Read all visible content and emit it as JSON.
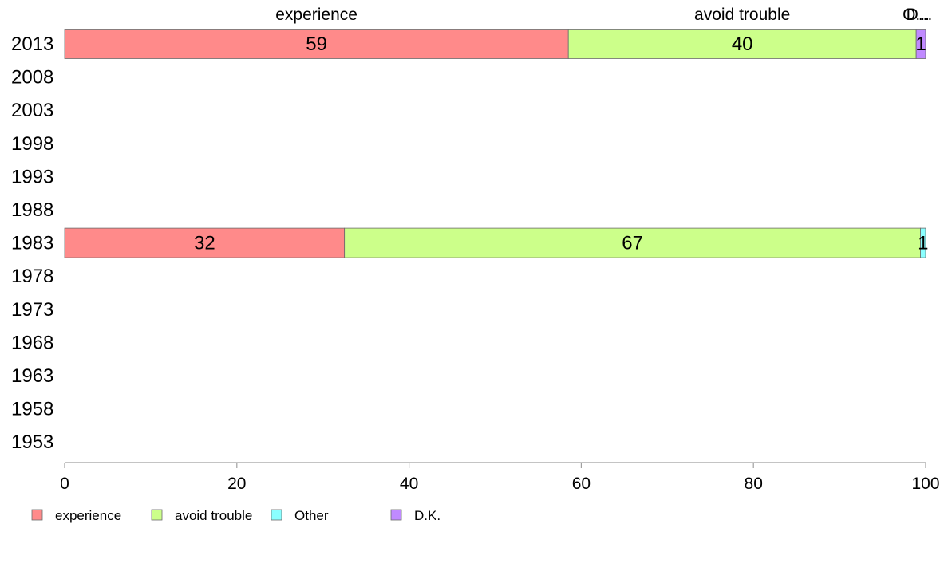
{
  "chart_data": {
    "type": "bar",
    "orientation": "horizontal",
    "stacked": true,
    "categories": [
      "2013",
      "2008",
      "2003",
      "1998",
      "1993",
      "1988",
      "1983",
      "1978",
      "1973",
      "1968",
      "1963",
      "1958",
      "1953"
    ],
    "series": [
      {
        "name": "experience",
        "color": "#ff8a8a",
        "values": [
          58.5,
          null,
          null,
          null,
          null,
          null,
          32.5,
          null,
          null,
          null,
          null,
          null,
          null
        ],
        "labels": [
          "59",
          null,
          null,
          null,
          null,
          null,
          "32",
          null,
          null,
          null,
          null,
          null,
          null
        ]
      },
      {
        "name": "avoid trouble",
        "color": "#ccff8a",
        "values": [
          40.4,
          null,
          null,
          null,
          null,
          null,
          66.9,
          null,
          null,
          null,
          null,
          null,
          null
        ],
        "labels": [
          "40",
          null,
          null,
          null,
          null,
          null,
          "67",
          null,
          null,
          null,
          null,
          null,
          null
        ]
      },
      {
        "name": "Other",
        "color": "#8affff",
        "values": [
          0,
          null,
          null,
          null,
          null,
          null,
          0.6,
          null,
          null,
          null,
          null,
          null,
          null
        ],
        "labels": [
          null,
          null,
          null,
          null,
          null,
          null,
          "1",
          null,
          null,
          null,
          null,
          null,
          null
        ]
      },
      {
        "name": "D.K.",
        "color": "#c08aff",
        "values": [
          1.1,
          null,
          null,
          null,
          null,
          null,
          0,
          null,
          null,
          null,
          null,
          null,
          null
        ],
        "labels": [
          "1",
          null,
          null,
          null,
          null,
          null,
          null,
          null,
          null,
          null,
          null,
          null,
          null
        ]
      }
    ],
    "top_labels": [
      {
        "text": "experience",
        "series": "experience"
      },
      {
        "text": "avoid trouble",
        "series": "avoid trouble"
      },
      {
        "text": "O...",
        "series": "Other"
      },
      {
        "text": "D...",
        "series": "D.K."
      }
    ],
    "xlim": [
      0,
      100
    ],
    "xticks": [
      0,
      20,
      40,
      60,
      80,
      100
    ],
    "xtick_labels": [
      "0",
      "20",
      "40",
      "60",
      "80",
      "100"
    ],
    "grid": false,
    "legend": {
      "position": "bottom-left"
    }
  }
}
